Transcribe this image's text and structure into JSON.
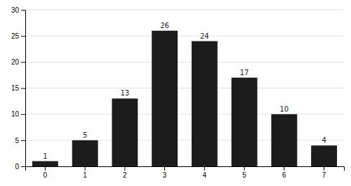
{
  "chart_data": {
    "type": "bar",
    "categories": [
      0,
      1,
      2,
      3,
      4,
      5,
      6,
      7
    ],
    "values": [
      1,
      5,
      13,
      26,
      24,
      17,
      10,
      4
    ],
    "color": "#1c1c1c",
    "ylim": [
      0,
      30
    ],
    "yticks": [
      0,
      5,
      10,
      15,
      20,
      25,
      30
    ],
    "grid": true,
    "data_labels": true
  }
}
